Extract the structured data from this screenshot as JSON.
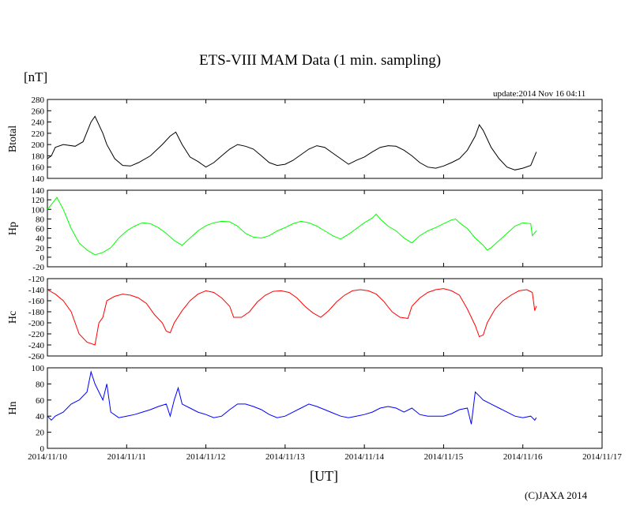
{
  "header": {
    "title": "ETS-VIII MAM Data (1 min. sampling)",
    "unit": "[nT]",
    "update": "update:2014 Nov 16 04:11"
  },
  "footer": {
    "xlabel": "[UT]",
    "copyright": "(C)JAXA 2014"
  },
  "chart_data": {
    "type": "line",
    "x_ticks": [
      "2014/11/10",
      "2014/11/11",
      "2014/11/12",
      "2014/11/13",
      "2014/11/14",
      "2014/11/15",
      "2014/11/16",
      "2014/11/17"
    ],
    "x_range_days": [
      0,
      7
    ],
    "x_axis_label": "[UT]",
    "panels": [
      {
        "name": "Btotal",
        "ylabel": "Btotal",
        "color": "#000000",
        "ylim": [
          140,
          280
        ],
        "yticks": [
          140,
          160,
          180,
          200,
          220,
          240,
          260,
          280
        ],
        "points": [
          [
            0,
            175
          ],
          [
            0.05,
            180
          ],
          [
            0.1,
            195
          ],
          [
            0.2,
            200
          ],
          [
            0.35,
            197
          ],
          [
            0.45,
            205
          ],
          [
            0.55,
            240
          ],
          [
            0.6,
            250
          ],
          [
            0.7,
            220
          ],
          [
            0.75,
            200
          ],
          [
            0.85,
            175
          ],
          [
            0.95,
            163
          ],
          [
            1.05,
            162
          ],
          [
            1.15,
            168
          ],
          [
            1.3,
            180
          ],
          [
            1.45,
            200
          ],
          [
            1.55,
            215
          ],
          [
            1.62,
            222
          ],
          [
            1.7,
            200
          ],
          [
            1.8,
            178
          ],
          [
            1.9,
            170
          ],
          [
            2.0,
            160
          ],
          [
            2.1,
            168
          ],
          [
            2.2,
            180
          ],
          [
            2.3,
            192
          ],
          [
            2.4,
            200
          ],
          [
            2.5,
            197
          ],
          [
            2.6,
            192
          ],
          [
            2.7,
            180
          ],
          [
            2.8,
            168
          ],
          [
            2.9,
            163
          ],
          [
            3.0,
            165
          ],
          [
            3.1,
            172
          ],
          [
            3.2,
            182
          ],
          [
            3.3,
            192
          ],
          [
            3.4,
            198
          ],
          [
            3.5,
            195
          ],
          [
            3.6,
            185
          ],
          [
            3.7,
            175
          ],
          [
            3.8,
            165
          ],
          [
            3.9,
            172
          ],
          [
            4.0,
            178
          ],
          [
            4.1,
            187
          ],
          [
            4.2,
            195
          ],
          [
            4.3,
            198
          ],
          [
            4.4,
            197
          ],
          [
            4.5,
            190
          ],
          [
            4.6,
            180
          ],
          [
            4.7,
            168
          ],
          [
            4.8,
            160
          ],
          [
            4.9,
            158
          ],
          [
            5.0,
            162
          ],
          [
            5.1,
            168
          ],
          [
            5.2,
            175
          ],
          [
            5.3,
            190
          ],
          [
            5.4,
            215
          ],
          [
            5.45,
            235
          ],
          [
            5.5,
            225
          ],
          [
            5.55,
            210
          ],
          [
            5.6,
            195
          ],
          [
            5.7,
            175
          ],
          [
            5.8,
            160
          ],
          [
            5.9,
            155
          ],
          [
            6.0,
            158
          ],
          [
            6.1,
            163
          ],
          [
            6.15,
            180
          ],
          [
            6.17,
            187
          ]
        ]
      },
      {
        "name": "Hp",
        "ylabel": "Hp",
        "color": "#00ff00",
        "ylim": [
          -20,
          140
        ],
        "yticks": [
          -20,
          0,
          20,
          40,
          60,
          80,
          100,
          120,
          140
        ],
        "points": [
          [
            0,
            100
          ],
          [
            0.05,
            110
          ],
          [
            0.12,
            125
          ],
          [
            0.2,
            100
          ],
          [
            0.3,
            60
          ],
          [
            0.4,
            30
          ],
          [
            0.5,
            15
          ],
          [
            0.6,
            5
          ],
          [
            0.7,
            10
          ],
          [
            0.8,
            20
          ],
          [
            0.9,
            40
          ],
          [
            1.0,
            55
          ],
          [
            1.1,
            65
          ],
          [
            1.2,
            72
          ],
          [
            1.3,
            70
          ],
          [
            1.4,
            62
          ],
          [
            1.5,
            50
          ],
          [
            1.6,
            35
          ],
          [
            1.7,
            25
          ],
          [
            1.8,
            40
          ],
          [
            1.9,
            55
          ],
          [
            2.0,
            66
          ],
          [
            2.1,
            72
          ],
          [
            2.2,
            75
          ],
          [
            2.3,
            74
          ],
          [
            2.4,
            65
          ],
          [
            2.5,
            50
          ],
          [
            2.6,
            42
          ],
          [
            2.7,
            40
          ],
          [
            2.8,
            45
          ],
          [
            2.9,
            55
          ],
          [
            3.0,
            62
          ],
          [
            3.1,
            70
          ],
          [
            3.2,
            75
          ],
          [
            3.3,
            72
          ],
          [
            3.4,
            65
          ],
          [
            3.5,
            55
          ],
          [
            3.6,
            45
          ],
          [
            3.7,
            38
          ],
          [
            3.8,
            48
          ],
          [
            3.9,
            60
          ],
          [
            4.0,
            72
          ],
          [
            4.1,
            82
          ],
          [
            4.15,
            90
          ],
          [
            4.2,
            80
          ],
          [
            4.3,
            65
          ],
          [
            4.4,
            55
          ],
          [
            4.5,
            40
          ],
          [
            4.6,
            30
          ],
          [
            4.7,
            45
          ],
          [
            4.8,
            55
          ],
          [
            4.9,
            62
          ],
          [
            5.0,
            70
          ],
          [
            5.1,
            78
          ],
          [
            5.15,
            80
          ],
          [
            5.2,
            72
          ],
          [
            5.3,
            60
          ],
          [
            5.4,
            40
          ],
          [
            5.5,
            25
          ],
          [
            5.55,
            15
          ],
          [
            5.6,
            20
          ],
          [
            5.7,
            35
          ],
          [
            5.8,
            50
          ],
          [
            5.9,
            65
          ],
          [
            6.0,
            72
          ],
          [
            6.1,
            70
          ],
          [
            6.12,
            45
          ],
          [
            6.17,
            55
          ]
        ]
      },
      {
        "name": "Hc",
        "ylabel": "Hc",
        "color": "#ff0000",
        "ylim": [
          -260,
          -120
        ],
        "yticks": [
          -260,
          -240,
          -220,
          -200,
          -180,
          -160,
          -140,
          -120
        ],
        "points": [
          [
            0,
            -140
          ],
          [
            0.1,
            -148
          ],
          [
            0.2,
            -160
          ],
          [
            0.3,
            -180
          ],
          [
            0.4,
            -220
          ],
          [
            0.5,
            -235
          ],
          [
            0.6,
            -240
          ],
          [
            0.65,
            -200
          ],
          [
            0.7,
            -190
          ],
          [
            0.75,
            -160
          ],
          [
            0.85,
            -152
          ],
          [
            0.95,
            -148
          ],
          [
            1.05,
            -150
          ],
          [
            1.15,
            -155
          ],
          [
            1.25,
            -165
          ],
          [
            1.35,
            -185
          ],
          [
            1.45,
            -200
          ],
          [
            1.5,
            -215
          ],
          [
            1.55,
            -218
          ],
          [
            1.6,
            -200
          ],
          [
            1.7,
            -178
          ],
          [
            1.8,
            -160
          ],
          [
            1.9,
            -148
          ],
          [
            2.0,
            -142
          ],
          [
            2.1,
            -145
          ],
          [
            2.2,
            -155
          ],
          [
            2.3,
            -170
          ],
          [
            2.35,
            -190
          ],
          [
            2.45,
            -190
          ],
          [
            2.55,
            -180
          ],
          [
            2.65,
            -162
          ],
          [
            2.75,
            -150
          ],
          [
            2.85,
            -143
          ],
          [
            2.95,
            -142
          ],
          [
            3.05,
            -145
          ],
          [
            3.15,
            -155
          ],
          [
            3.25,
            -170
          ],
          [
            3.35,
            -182
          ],
          [
            3.45,
            -190
          ],
          [
            3.55,
            -178
          ],
          [
            3.65,
            -162
          ],
          [
            3.75,
            -150
          ],
          [
            3.85,
            -142
          ],
          [
            3.95,
            -140
          ],
          [
            4.05,
            -142
          ],
          [
            4.15,
            -148
          ],
          [
            4.25,
            -162
          ],
          [
            4.35,
            -180
          ],
          [
            4.45,
            -190
          ],
          [
            4.55,
            -192
          ],
          [
            4.6,
            -170
          ],
          [
            4.7,
            -155
          ],
          [
            4.8,
            -145
          ],
          [
            4.9,
            -140
          ],
          [
            5.0,
            -138
          ],
          [
            5.1,
            -142
          ],
          [
            5.2,
            -150
          ],
          [
            5.3,
            -175
          ],
          [
            5.4,
            -205
          ],
          [
            5.45,
            -225
          ],
          [
            5.5,
            -222
          ],
          [
            5.55,
            -200
          ],
          [
            5.65,
            -175
          ],
          [
            5.75,
            -160
          ],
          [
            5.85,
            -150
          ],
          [
            5.95,
            -142
          ],
          [
            6.05,
            -140
          ],
          [
            6.12,
            -145
          ],
          [
            6.15,
            -178
          ],
          [
            6.17,
            -170
          ]
        ]
      },
      {
        "name": "Hn",
        "ylabel": "Hn",
        "color": "#0000ff",
        "ylim": [
          0,
          100
        ],
        "yticks": [
          0,
          20,
          40,
          60,
          80,
          100
        ],
        "points": [
          [
            0,
            40
          ],
          [
            0.05,
            35
          ],
          [
            0.1,
            40
          ],
          [
            0.2,
            45
          ],
          [
            0.3,
            55
          ],
          [
            0.4,
            60
          ],
          [
            0.5,
            70
          ],
          [
            0.55,
            95
          ],
          [
            0.6,
            80
          ],
          [
            0.65,
            70
          ],
          [
            0.7,
            60
          ],
          [
            0.75,
            80
          ],
          [
            0.8,
            45
          ],
          [
            0.9,
            38
          ],
          [
            1.0,
            40
          ],
          [
            1.1,
            42
          ],
          [
            1.2,
            45
          ],
          [
            1.3,
            48
          ],
          [
            1.4,
            52
          ],
          [
            1.5,
            55
          ],
          [
            1.55,
            40
          ],
          [
            1.6,
            60
          ],
          [
            1.65,
            75
          ],
          [
            1.7,
            55
          ],
          [
            1.8,
            50
          ],
          [
            1.9,
            45
          ],
          [
            2.0,
            42
          ],
          [
            2.1,
            38
          ],
          [
            2.2,
            40
          ],
          [
            2.3,
            48
          ],
          [
            2.4,
            55
          ],
          [
            2.5,
            55
          ],
          [
            2.6,
            52
          ],
          [
            2.7,
            48
          ],
          [
            2.8,
            42
          ],
          [
            2.9,
            38
          ],
          [
            3.0,
            40
          ],
          [
            3.1,
            45
          ],
          [
            3.2,
            50
          ],
          [
            3.3,
            55
          ],
          [
            3.4,
            52
          ],
          [
            3.5,
            48
          ],
          [
            3.6,
            44
          ],
          [
            3.7,
            40
          ],
          [
            3.8,
            38
          ],
          [
            3.9,
            40
          ],
          [
            4.0,
            42
          ],
          [
            4.1,
            45
          ],
          [
            4.2,
            50
          ],
          [
            4.3,
            52
          ],
          [
            4.4,
            50
          ],
          [
            4.5,
            45
          ],
          [
            4.6,
            50
          ],
          [
            4.7,
            42
          ],
          [
            4.8,
            40
          ],
          [
            4.9,
            40
          ],
          [
            5.0,
            40
          ],
          [
            5.1,
            43
          ],
          [
            5.2,
            48
          ],
          [
            5.3,
            50
          ],
          [
            5.35,
            30
          ],
          [
            5.4,
            70
          ],
          [
            5.45,
            65
          ],
          [
            5.5,
            60
          ],
          [
            5.6,
            55
          ],
          [
            5.7,
            50
          ],
          [
            5.8,
            45
          ],
          [
            5.9,
            40
          ],
          [
            6.0,
            38
          ],
          [
            6.1,
            40
          ],
          [
            6.15,
            35
          ],
          [
            6.17,
            38
          ]
        ]
      }
    ]
  }
}
